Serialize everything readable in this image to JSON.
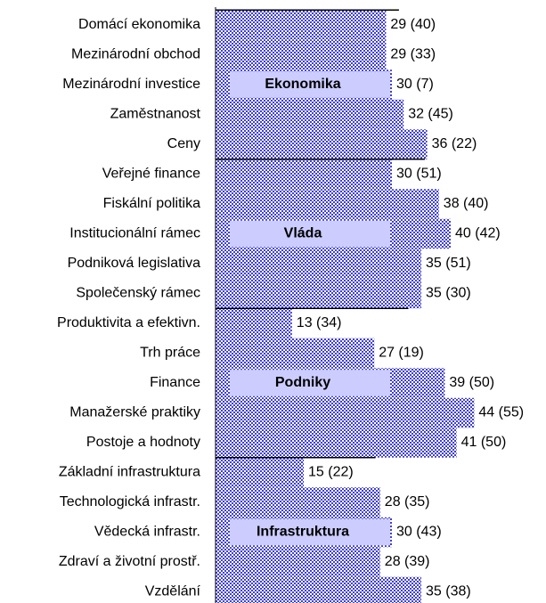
{
  "chart_data": {
    "type": "bar",
    "color": "#4040d0",
    "xlim": [
      0,
      55
    ],
    "groups": [
      {
        "name": "Ekonomika",
        "categories": [
          "Domácí ekonomika",
          "Mezinárodní obchod",
          "Mezinárodní investice",
          "Zaměstnanost",
          "Ceny"
        ],
        "values": [
          29,
          29,
          30,
          32,
          36
        ],
        "value_labels": [
          "29 (40)",
          "29 (33)",
          "30 (7)",
          "32 (45)",
          "36 (22)"
        ]
      },
      {
        "name": "Vláda",
        "categories": [
          "Veřejné finance",
          "Fiskální politika",
          "Institucionální rámec",
          "Podniková legislativa",
          "Společenský rámec"
        ],
        "values": [
          30,
          38,
          40,
          35,
          35
        ],
        "value_labels": [
          "30 (51)",
          "38 (40)",
          "40 (42)",
          "35 (51)",
          "35 (30)"
        ]
      },
      {
        "name": "Podniky",
        "categories": [
          "Produktivita a efektivn.",
          "Trh práce",
          "Finance",
          "Manažerské praktiky",
          "Postoje a hodnoty"
        ],
        "values": [
          13,
          27,
          39,
          44,
          41
        ],
        "value_labels": [
          "13 (34)",
          "27 (19)",
          "39 (50)",
          "44 (55)",
          "41 (50)"
        ]
      },
      {
        "name": "Infrastruktura",
        "categories": [
          "Základní infrastruktura",
          "Technologická infrastr.",
          "Vědecká infrastr.",
          "Zdraví a životní prostř.",
          "Vzdělání"
        ],
        "values": [
          15,
          28,
          30,
          28,
          35
        ],
        "value_labels": [
          "15 (22)",
          "28 (35)",
          "30 (43)",
          "28 (39)",
          "35 (38)"
        ]
      }
    ]
  }
}
